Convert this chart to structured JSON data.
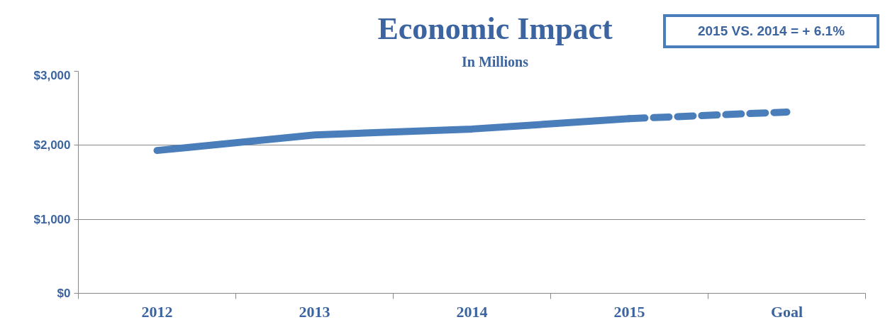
{
  "chart_data": {
    "type": "line",
    "title": "Economic Impact",
    "subtitle": "In Millions",
    "annotations": [
      "2015 VS. 2014 = + 6.1%"
    ],
    "categories": [
      "2012",
      "2013",
      "2014",
      "2015",
      "Goal"
    ],
    "series": [
      {
        "color": "#4a7ebb",
        "line_style": "solid",
        "values": [
          1930,
          2140,
          2220,
          2360,
          null
        ]
      },
      {
        "color": "#4a7ebb",
        "line_style": "dashed",
        "values": [
          null,
          null,
          null,
          2360,
          2450
        ]
      }
    ],
    "ylim": [
      0,
      3000
    ],
    "yticks": [
      {
        "value": 0,
        "label": "$0"
      },
      {
        "value": 1000,
        "label": "$1,000"
      },
      {
        "value": 2000,
        "label": "$2,000"
      },
      {
        "value": 3000,
        "label": "$3,000"
      }
    ],
    "grid": "y",
    "marker": "none"
  }
}
